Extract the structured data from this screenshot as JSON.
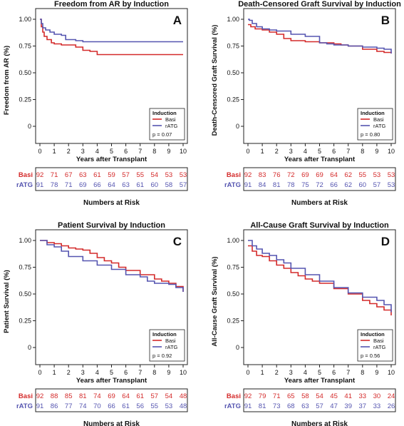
{
  "colors": {
    "basi": "#d42a2a",
    "ratg": "#5555b0"
  },
  "chart_data": [
    {
      "type": "line",
      "panel_letter": "A",
      "title": "Freedom from AR by Induction",
      "xlabel": "Years after Transplant",
      "ylabel": "Freedom from AR (%)",
      "xlim": [
        0,
        10
      ],
      "ylim": [
        0,
        1
      ],
      "xticks": [
        "0",
        "1",
        "2",
        "3",
        "4",
        "5",
        "6",
        "7",
        "8",
        "9",
        "10"
      ],
      "yticks": [
        "0",
        "0.25",
        "0.50",
        "0.75",
        "1.00"
      ],
      "legend": {
        "title": "Induction",
        "items": [
          "Basi",
          "rATG"
        ],
        "pvalue": "p = 0.07",
        "position": "bottom-right"
      },
      "series": [
        {
          "name": "Basi",
          "x": [
            0,
            0.1,
            0.2,
            0.3,
            0.5,
            0.8,
            1.0,
            1.5,
            2.5,
            3.0,
            3.5,
            4.0,
            6.0,
            10.0
          ],
          "y": [
            1.0,
            0.93,
            0.88,
            0.84,
            0.81,
            0.78,
            0.77,
            0.76,
            0.74,
            0.71,
            0.7,
            0.67,
            0.67,
            0.67
          ]
        },
        {
          "name": "rATG",
          "x": [
            0,
            0.1,
            0.2,
            0.4,
            0.7,
            1.0,
            1.5,
            1.8,
            2.5,
            3.0,
            10.0
          ],
          "y": [
            1.0,
            0.96,
            0.92,
            0.9,
            0.88,
            0.86,
            0.85,
            0.81,
            0.8,
            0.79,
            0.79
          ]
        }
      ],
      "risk": {
        "title": "Numbers at Risk",
        "rows": [
          {
            "label": "Basi",
            "values": [
              "92",
              "71",
              "67",
              "63",
              "61",
              "59",
              "57",
              "55",
              "54",
              "53",
              "53"
            ]
          },
          {
            "label": "rATG",
            "values": [
              "91",
              "78",
              "71",
              "69",
              "66",
              "64",
              "63",
              "61",
              "60",
              "58",
              "57"
            ]
          }
        ]
      }
    },
    {
      "type": "line",
      "panel_letter": "B",
      "title": "Death-Censored Graft Survival by Induction",
      "xlabel": "Years after Transplant",
      "ylabel": "Death-Censored Graft Survival (%)",
      "xlim": [
        0,
        10
      ],
      "ylim": [
        0,
        1
      ],
      "xticks": [
        "0",
        "1",
        "2",
        "3",
        "4",
        "5",
        "6",
        "7",
        "8",
        "9",
        "10"
      ],
      "yticks": [
        "0",
        "0.25",
        "0.50",
        "0.75",
        "1.00"
      ],
      "legend": {
        "title": "Induction",
        "items": [
          "Basi",
          "rATG"
        ],
        "pvalue": "p = 0.80",
        "position": "bottom-right"
      },
      "series": [
        {
          "name": "Basi",
          "x": [
            0,
            0.2,
            0.5,
            1.0,
            1.5,
            2.0,
            2.5,
            3.0,
            4.0,
            5.0,
            6.0,
            6.5,
            7.0,
            8.0,
            9.0,
            9.5,
            10.0
          ],
          "y": [
            0.95,
            0.93,
            0.91,
            0.9,
            0.88,
            0.86,
            0.82,
            0.8,
            0.79,
            0.78,
            0.77,
            0.76,
            0.75,
            0.72,
            0.7,
            0.69,
            0.68
          ]
        },
        {
          "name": "rATG",
          "x": [
            0,
            0.1,
            0.3,
            0.6,
            1.0,
            1.5,
            2.0,
            3.0,
            4.0,
            5.0,
            5.5,
            6.0,
            7.0,
            8.0,
            9.0,
            9.5,
            10.0
          ],
          "y": [
            1.0,
            0.99,
            0.96,
            0.93,
            0.91,
            0.9,
            0.89,
            0.86,
            0.84,
            0.78,
            0.77,
            0.76,
            0.75,
            0.74,
            0.73,
            0.72,
            0.68
          ]
        }
      ],
      "risk": {
        "title": "Numbers at Risk",
        "rows": [
          {
            "label": "Basi",
            "values": [
              "92",
              "83",
              "76",
              "72",
              "69",
              "69",
              "64",
              "62",
              "55",
              "53",
              "53"
            ]
          },
          {
            "label": "rATG",
            "values": [
              "91",
              "84",
              "81",
              "78",
              "75",
              "72",
              "66",
              "62",
              "60",
              "57",
              "53"
            ]
          }
        ]
      }
    },
    {
      "type": "line",
      "panel_letter": "C",
      "title": "Patient Survival by Induction",
      "xlabel": "Years after Transplant",
      "ylabel": "Patient Survival (%)",
      "xlim": [
        0,
        10
      ],
      "ylim": [
        0,
        1
      ],
      "xticks": [
        "0",
        "1",
        "2",
        "3",
        "4",
        "5",
        "6",
        "7",
        "8",
        "9",
        "10"
      ],
      "yticks": [
        "0",
        "0.25",
        "0.50",
        "0.75",
        "1.00"
      ],
      "legend": {
        "title": "Induction",
        "items": [
          "Basi",
          "rATG"
        ],
        "pvalue": "p = 0.92",
        "position": "bottom-right"
      },
      "series": [
        {
          "name": "Basi",
          "x": [
            0,
            0.5,
            1.0,
            1.5,
            2.0,
            2.5,
            3.0,
            3.5,
            4.0,
            4.5,
            5.0,
            5.5,
            6.0,
            7.0,
            8.0,
            8.5,
            9.0,
            9.5,
            10.0
          ],
          "y": [
            1.0,
            0.98,
            0.97,
            0.95,
            0.93,
            0.92,
            0.91,
            0.88,
            0.84,
            0.81,
            0.79,
            0.75,
            0.72,
            0.68,
            0.64,
            0.62,
            0.6,
            0.57,
            0.52
          ]
        },
        {
          "name": "rATG",
          "x": [
            0,
            0.5,
            1.0,
            1.5,
            2.0,
            3.0,
            4.0,
            5.0,
            6.0,
            7.0,
            7.5,
            8.0,
            9.0,
            9.5,
            10.0
          ],
          "y": [
            1.0,
            0.96,
            0.94,
            0.9,
            0.85,
            0.81,
            0.77,
            0.73,
            0.68,
            0.66,
            0.62,
            0.6,
            0.59,
            0.56,
            0.52
          ]
        }
      ],
      "risk": {
        "title": "Numbers at Risk",
        "rows": [
          {
            "label": "Basi",
            "values": [
              "92",
              "88",
              "85",
              "81",
              "74",
              "69",
              "64",
              "61",
              "57",
              "54",
              "48"
            ]
          },
          {
            "label": "rATG",
            "values": [
              "91",
              "86",
              "77",
              "74",
              "70",
              "66",
              "61",
              "56",
              "55",
              "53",
              "48"
            ]
          }
        ]
      }
    },
    {
      "type": "line",
      "panel_letter": "D",
      "title": "All-Cause Graft Survival by Induction",
      "xlabel": "Years after Transplant",
      "ylabel": "All-Cause Graft Survival (%)",
      "xlim": [
        0,
        10
      ],
      "ylim": [
        0,
        1
      ],
      "xticks": [
        "0",
        "1",
        "2",
        "3",
        "4",
        "5",
        "6",
        "7",
        "8",
        "9",
        "10"
      ],
      "yticks": [
        "0",
        "0.25",
        "0.50",
        "0.75",
        "1.00"
      ],
      "legend": {
        "title": "Induction",
        "items": [
          "Basi",
          "rATG"
        ],
        "pvalue": "p = 0.56",
        "position": "bottom-right"
      },
      "series": [
        {
          "name": "Basi",
          "x": [
            0,
            0.3,
            0.6,
            1.0,
            1.5,
            2.0,
            2.5,
            3.0,
            3.5,
            4.0,
            4.5,
            5.0,
            6.0,
            7.0,
            8.0,
            8.5,
            9.0,
            9.5,
            10.0
          ],
          "y": [
            0.95,
            0.9,
            0.86,
            0.85,
            0.81,
            0.77,
            0.74,
            0.7,
            0.67,
            0.64,
            0.62,
            0.6,
            0.55,
            0.5,
            0.44,
            0.41,
            0.38,
            0.35,
            0.3
          ]
        },
        {
          "name": "rATG",
          "x": [
            0,
            0.3,
            0.6,
            1.0,
            1.5,
            2.0,
            2.5,
            3.0,
            4.0,
            5.0,
            6.0,
            7.0,
            8.0,
            9.0,
            9.5,
            10.0
          ],
          "y": [
            1.0,
            0.95,
            0.92,
            0.88,
            0.86,
            0.82,
            0.79,
            0.74,
            0.68,
            0.62,
            0.56,
            0.51,
            0.47,
            0.44,
            0.4,
            0.33
          ]
        }
      ],
      "risk": {
        "title": "Numbers at Risk",
        "rows": [
          {
            "label": "Basi",
            "values": [
              "92",
              "79",
              "71",
              "65",
              "58",
              "54",
              "45",
              "41",
              "33",
              "30",
              "24"
            ]
          },
          {
            "label": "rATG",
            "values": [
              "91",
              "81",
              "73",
              "68",
              "63",
              "57",
              "47",
              "39",
              "37",
              "33",
              "26"
            ]
          }
        ]
      }
    }
  ]
}
